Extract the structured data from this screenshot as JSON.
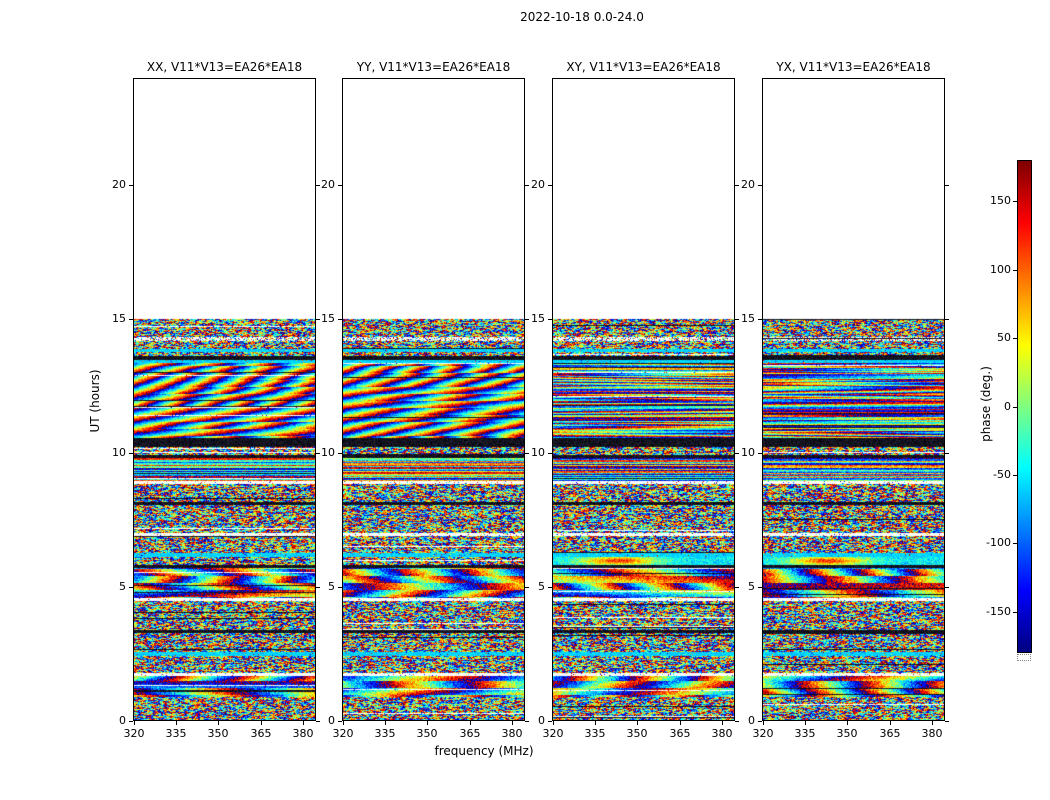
{
  "figure": {
    "title": "2022-10-18 0.0-24.0",
    "xlabel": "frequency (MHz)",
    "ylabel": "UT (hours)"
  },
  "panels": [
    {
      "pol": "XX",
      "title": "XX, V11*V13=EA26*EA18"
    },
    {
      "pol": "YY",
      "title": "YY, V11*V13=EA26*EA18"
    },
    {
      "pol": "XY",
      "title": "XY, V11*V13=EA26*EA18"
    },
    {
      "pol": "YX",
      "title": "YX, V11*V13=EA26*EA18"
    }
  ],
  "colorbar": {
    "label": "phase (deg.)",
    "tick_values": [
      150,
      100,
      50,
      0,
      -50,
      -100,
      -150
    ],
    "tick_labels": [
      "150",
      "100",
      "50",
      "0",
      "-50",
      "-100",
      "-150"
    ],
    "range": [
      -180,
      180
    ],
    "colormap": "jet"
  },
  "chart_data": {
    "type": "heatmap",
    "title": "2022-10-18 0.0-24.0",
    "xlabel": "frequency (MHz)",
    "ylabel": "UT (hours)",
    "value_label": "phase (deg.)",
    "panels": [
      "XX",
      "YY",
      "XY",
      "YX"
    ],
    "baseline": "V11*V13=EA26*EA18",
    "date": "2022-10-18",
    "time_range_hours": [
      0.0,
      24.0
    ],
    "x_range_mhz": [
      320,
      384
    ],
    "xticks": [
      320,
      335,
      350,
      365,
      380
    ],
    "y_range_hours": [
      0,
      24
    ],
    "yticks": [
      0,
      5,
      10,
      15,
      20
    ],
    "value_range_deg": [
      -180,
      180
    ],
    "colormap": "jet",
    "data_coverage_hours": [
      0,
      15
    ],
    "fringe_panels": [
      "XX",
      "YY"
    ],
    "blob_panels": [
      "XY",
      "YX"
    ],
    "bands": [
      {
        "from": 14.92,
        "to": 15.02,
        "type": "noise"
      },
      {
        "from": 14.35,
        "to": 14.92,
        "type": "noise"
      },
      {
        "from": 14.2,
        "to": 14.35,
        "type": "sparse"
      },
      {
        "from": 13.9,
        "to": 14.2,
        "type": "noise"
      },
      {
        "from": 13.78,
        "to": 13.9,
        "type": "cyan"
      },
      {
        "from": 13.62,
        "to": 13.78,
        "type": "noise"
      },
      {
        "from": 13.5,
        "to": 13.62,
        "type": "black"
      },
      {
        "from": 13.38,
        "to": 13.5,
        "type": "cyan"
      },
      {
        "from": 10.55,
        "to": 13.38,
        "type": "fringes"
      },
      {
        "from": 10.22,
        "to": 10.55,
        "type": "black"
      },
      {
        "from": 9.92,
        "to": 10.22,
        "type": "noise"
      },
      {
        "from": 9.8,
        "to": 9.92,
        "type": "black"
      },
      {
        "from": 8.95,
        "to": 9.8,
        "type": "hnoise"
      },
      {
        "from": 8.85,
        "to": 8.95,
        "type": "white"
      },
      {
        "from": 8.15,
        "to": 8.85,
        "type": "noise"
      },
      {
        "from": 8.05,
        "to": 8.15,
        "type": "black"
      },
      {
        "from": 7.0,
        "to": 8.05,
        "type": "noise"
      },
      {
        "from": 6.88,
        "to": 7.0,
        "type": "white"
      },
      {
        "from": 6.25,
        "to": 6.88,
        "type": "noise"
      },
      {
        "from": 6.1,
        "to": 6.25,
        "type": "cyan"
      },
      {
        "from": 5.8,
        "to": 6.1,
        "type": "blob"
      },
      {
        "from": 5.68,
        "to": 5.8,
        "type": "black"
      },
      {
        "from": 4.55,
        "to": 5.68,
        "type": "fringes2"
      },
      {
        "from": 4.45,
        "to": 4.55,
        "type": "white"
      },
      {
        "from": 3.35,
        "to": 4.45,
        "type": "noise"
      },
      {
        "from": 3.25,
        "to": 3.35,
        "type": "black"
      },
      {
        "from": 2.55,
        "to": 3.25,
        "type": "noise"
      },
      {
        "from": 2.4,
        "to": 2.55,
        "type": "cyan"
      },
      {
        "from": 1.75,
        "to": 2.4,
        "type": "noise"
      },
      {
        "from": 1.65,
        "to": 1.75,
        "type": "white"
      },
      {
        "from": 0.85,
        "to": 1.65,
        "type": "fringes2"
      },
      {
        "from": 0.0,
        "to": 0.85,
        "type": "noise"
      }
    ]
  }
}
